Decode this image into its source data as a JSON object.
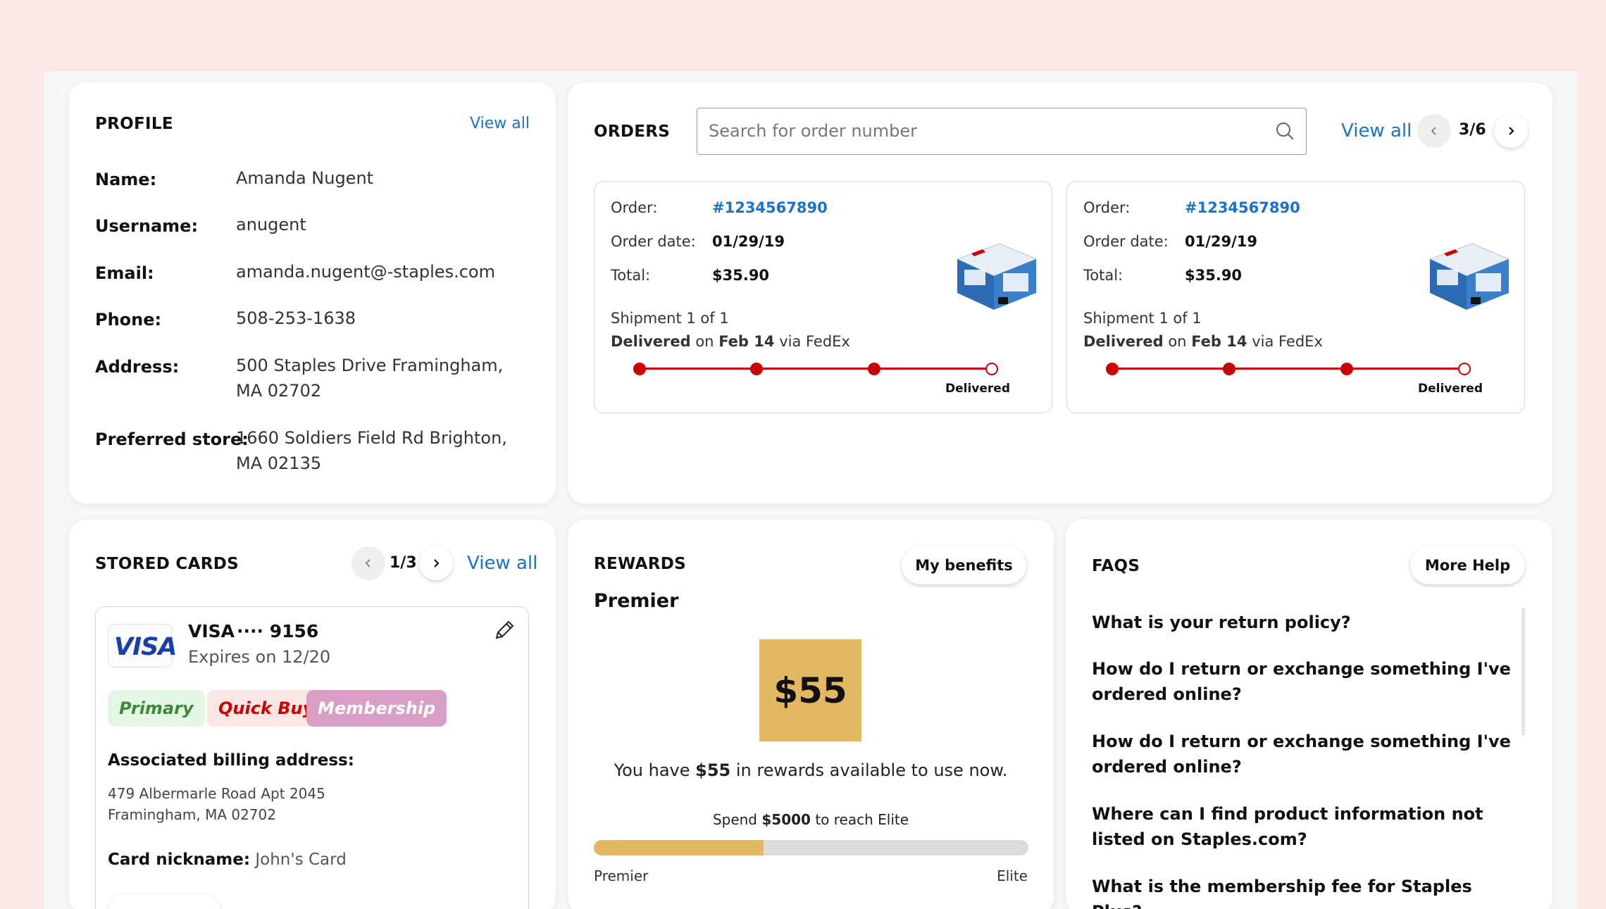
{
  "profile": {
    "title": "PROFILE",
    "view_all": "View all",
    "fields": [
      {
        "label": "Name:",
        "value": "Amanda Nugent"
      },
      {
        "label": "Username:",
        "value": "anugent"
      },
      {
        "label": "Email:",
        "value": "amanda.nugent@-staples.com"
      },
      {
        "label": "Phone:",
        "value": "508-253-1638"
      },
      {
        "label": "Address:",
        "value": "500 Staples Drive Framingham, MA 02702"
      },
      {
        "label": "Preferred store:",
        "value": "1660 Soldiers Field Rd Brighton, MA 02135"
      }
    ]
  },
  "orders": {
    "title": "ORDERS",
    "search_placeholder": "Search for order number",
    "view_all": "View all",
    "pager": "3/6",
    "items": [
      {
        "order_label": "Order:",
        "order_number": "#1234567890",
        "date_label": "Order date:",
        "date": "01/29/19",
        "total_label": "Total:",
        "total": "$35.90",
        "shipment": "Shipment 1 of 1",
        "status_bold": "Delivered",
        "status_on": "on",
        "status_date": "Feb 14",
        "status_via": "via FedEx",
        "tracker_label": "Delivered",
        "tracker_steps_done": 3,
        "tracker_steps_total": 4
      },
      {
        "order_label": "Order:",
        "order_number": "#1234567890",
        "date_label": "Order date:",
        "date": "01/29/19",
        "total_label": "Total:",
        "total": "$35.90",
        "shipment": "Shipment 1 of 1",
        "status_bold": "Delivered",
        "status_on": "on",
        "status_date": "Feb 14",
        "status_via": "via FedEx",
        "tracker_label": "Delivered",
        "tracker_steps_done": 3,
        "tracker_steps_total": 4
      }
    ]
  },
  "cards": {
    "title": "STORED CARDS",
    "pager": "1/3",
    "view_all": "View all",
    "card": {
      "brand": "VISA",
      "logo_text": "VISA",
      "mask": "···· 9156",
      "expiry": "Expires on 12/20",
      "tags": [
        {
          "label": "Primary",
          "bg": "#e4f6e4",
          "color": "#3c8a3c"
        },
        {
          "label": "Quick Buy",
          "bg": "#fbe6e6",
          "color": "#cc0000"
        },
        {
          "label": "Membership",
          "bg": "#d99ec4",
          "color": "#ffffff"
        }
      ],
      "billing_title": "Associated billing address:",
      "billing_line1": "479 Albermarle Road Apt 2045",
      "billing_line2": "Framingham, MA 02702",
      "nickname_label": "Card nickname:",
      "nickname": "John's Card"
    }
  },
  "rewards": {
    "title": "REWARDS",
    "benefits_button": "My benefits",
    "tier": "Premier",
    "amount": "$55",
    "message_pre": "You have",
    "message_amount": "$55",
    "message_post": "in rewards available to use now.",
    "spend_pre": "Spend",
    "spend_amount": "$5000",
    "spend_post": "to reach Elite",
    "progress_fraction": 0.39,
    "progress_start_label": "Premier",
    "progress_end_label": "Elite"
  },
  "faqs": {
    "title": "FAQS",
    "more_help": "More Help",
    "items": [
      "What is your return policy?",
      "How do I return or exchange something I've ordered online?",
      "How do I return or exchange something I've ordered online?",
      "Where can I find product information not listed on Staples.com?",
      "What is the membership fee for Staples Plus?"
    ]
  },
  "colors": {
    "accent_link": "#1a73c8",
    "tracker_red": "#cc0000",
    "reward_gold": "#e2b862",
    "frame_pink": "#fbe8e8"
  }
}
